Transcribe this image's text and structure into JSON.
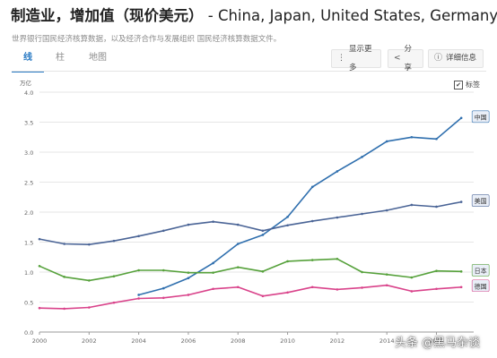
{
  "header": {
    "title_main": "制造业，增加值（现价美元）",
    "title_countries": " - China, Japan, United States, Germany",
    "source": "世界银行国民经济核算数据，以及经济合作与发展组织 国民经济核算数据文件。"
  },
  "tabs": [
    {
      "label": "线",
      "active": true
    },
    {
      "label": "柱",
      "active": false
    },
    {
      "label": "地图",
      "active": false
    }
  ],
  "toolbar": {
    "show_more": "显示更多",
    "share": "分享",
    "details": "详细信息"
  },
  "legend_toggle": {
    "label": "标签",
    "checked": true
  },
  "watermark": "头条 @黑马杂谈",
  "chart_data": {
    "type": "line",
    "ylabel": "万亿",
    "ylim": [
      0,
      4.0
    ],
    "yticks": [
      "0.0",
      "0.5",
      "1.0",
      "1.5",
      "2.0",
      "2.5",
      "3.0",
      "3.5",
      "4.0"
    ],
    "xlim": [
      2000,
      2017.5
    ],
    "xticks": [
      "2000",
      "2002",
      "2004",
      "2006",
      "2008",
      "2010",
      "2012",
      "2014",
      "2016"
    ],
    "grid": "horizontal",
    "series": [
      {
        "name": "中国",
        "color": "#2f6fae",
        "x": [
          2004,
          2005,
          2006,
          2007,
          2008,
          2009,
          2010,
          2011,
          2012,
          2013,
          2014,
          2015,
          2016,
          2017
        ],
        "values": [
          0.62,
          0.73,
          0.9,
          1.15,
          1.47,
          1.62,
          1.92,
          2.42,
          2.68,
          2.92,
          3.18,
          3.25,
          3.22,
          3.57
        ]
      },
      {
        "name": "美国",
        "color": "#4a6496",
        "x": [
          2000,
          2001,
          2002,
          2003,
          2004,
          2005,
          2006,
          2007,
          2008,
          2009,
          2010,
          2011,
          2012,
          2013,
          2014,
          2015,
          2016,
          2017
        ],
        "values": [
          1.55,
          1.47,
          1.46,
          1.52,
          1.6,
          1.69,
          1.79,
          1.84,
          1.79,
          1.69,
          1.78,
          1.85,
          1.91,
          1.97,
          2.03,
          2.12,
          2.09,
          2.17
        ]
      },
      {
        "name": "日本",
        "color": "#56a13b",
        "x": [
          2000,
          2001,
          2002,
          2003,
          2004,
          2005,
          2006,
          2007,
          2008,
          2009,
          2010,
          2011,
          2012,
          2013,
          2014,
          2015,
          2016,
          2017
        ],
        "values": [
          1.1,
          0.92,
          0.86,
          0.93,
          1.03,
          1.03,
          0.99,
          0.99,
          1.08,
          1.01,
          1.18,
          1.2,
          1.22,
          1.0,
          0.96,
          0.91,
          1.02,
          1.01
        ]
      },
      {
        "name": "德国",
        "color": "#d9428a",
        "x": [
          2000,
          2001,
          2002,
          2003,
          2004,
          2005,
          2006,
          2007,
          2008,
          2009,
          2010,
          2011,
          2012,
          2013,
          2014,
          2015,
          2016,
          2017
        ],
        "values": [
          0.4,
          0.39,
          0.41,
          0.49,
          0.56,
          0.57,
          0.62,
          0.72,
          0.75,
          0.6,
          0.66,
          0.75,
          0.71,
          0.74,
          0.78,
          0.68,
          0.72,
          0.75
        ]
      }
    ]
  }
}
